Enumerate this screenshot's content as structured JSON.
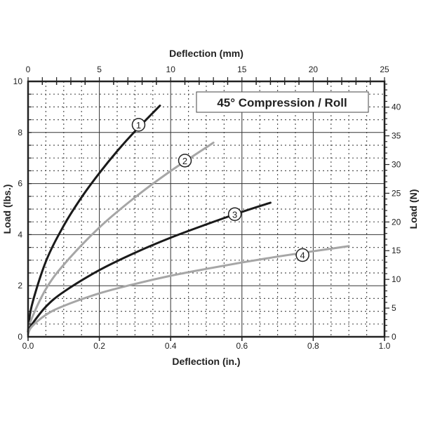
{
  "chart_data": {
    "type": "line",
    "title": "45° Compression / Roll",
    "xlabel": "Deflection (in.)",
    "x2label": "Deflection (mm)",
    "ylabel": "Load (lbs.)",
    "y2label": "Load (N)",
    "xlim": [
      0,
      1
    ],
    "ylim": [
      0,
      10
    ],
    "x2lim": [
      0,
      25
    ],
    "y2lim": [
      0,
      44.48
    ],
    "xticks": [
      "0.0",
      "0.2",
      "0.4",
      "0.6",
      "0.8",
      "1.0"
    ],
    "yticks": [
      "0",
      "2",
      "4",
      "6",
      "8",
      "10"
    ],
    "x2ticks": [
      "0",
      "5",
      "10",
      "15",
      "20",
      "25"
    ],
    "y2ticks": [
      "0",
      "5",
      "10",
      "15",
      "20",
      "25",
      "30",
      "35",
      "40"
    ],
    "grid": true,
    "series": [
      {
        "name": "1",
        "color": "#1a1a1a",
        "label_at": [
          0.31,
          8.3
        ],
        "x": [
          0,
          0.01,
          0.05,
          0.1,
          0.15,
          0.2,
          0.25,
          0.3,
          0.37
        ],
        "y": [
          0.2,
          1.2,
          2.95,
          4.35,
          5.46,
          6.41,
          7.27,
          8.05,
          9.05
        ]
      },
      {
        "name": "2",
        "color": "#a6a6a6",
        "label_at": [
          0.44,
          6.9
        ],
        "x": [
          0,
          0.01,
          0.05,
          0.1,
          0.2,
          0.3,
          0.4,
          0.52
        ],
        "y": [
          0.2,
          0.71,
          1.87,
          2.82,
          4.28,
          5.46,
          6.49,
          7.6
        ]
      },
      {
        "name": "3",
        "color": "#1a1a1a",
        "label_at": [
          0.58,
          4.8
        ],
        "x": [
          0,
          0.01,
          0.05,
          0.1,
          0.2,
          0.3,
          0.4,
          0.5,
          0.6,
          0.68
        ],
        "y": [
          0.2,
          0.47,
          1.18,
          1.76,
          2.61,
          3.29,
          3.88,
          4.4,
          4.89,
          5.25
        ]
      },
      {
        "name": "4",
        "color": "#a6a6a6",
        "label_at": [
          0.77,
          3.2
        ],
        "x": [
          0,
          0.01,
          0.05,
          0.1,
          0.2,
          0.3,
          0.4,
          0.5,
          0.6,
          0.7,
          0.8,
          0.9
        ],
        "y": [
          0.1,
          0.39,
          0.86,
          1.21,
          1.7,
          2.07,
          2.39,
          2.66,
          2.91,
          3.14,
          3.35,
          3.55
        ]
      }
    ]
  }
}
